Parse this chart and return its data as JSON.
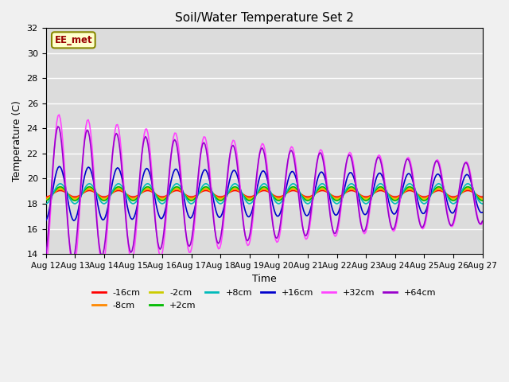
{
  "title": "Soil/Water Temperature Set 2",
  "xlabel": "Time",
  "ylabel": "Temperature (C)",
  "ylim": [
    14,
    32
  ],
  "annotation_text": "EE_met",
  "plot_bg_color": "#dcdcdc",
  "fig_bg_color": "#f0f0f0",
  "series": [
    {
      "label": "-16cm",
      "color": "#ff0000"
    },
    {
      "label": "-8cm",
      "color": "#ff8800"
    },
    {
      "label": "-2cm",
      "color": "#cccc00"
    },
    {
      "label": "+2cm",
      "color": "#00bb00"
    },
    {
      "label": "+8cm",
      "color": "#00bbbb"
    },
    {
      "label": "+16cm",
      "color": "#0000cc"
    },
    {
      "label": "+32cm",
      "color": "#ff44ff"
    },
    {
      "label": "+64cm",
      "color": "#9900cc"
    }
  ],
  "n_days": 15,
  "points_per_day": 24,
  "base_temp": 18.8,
  "xtick_labels": [
    "Aug 12",
    "Aug 13",
    "Aug 14",
    "Aug 15",
    "Aug 16",
    "Aug 17",
    "Aug 18",
    "Aug 19",
    "Aug 20",
    "Aug 21",
    "Aug 22",
    "Aug 23",
    "Aug 24",
    "Aug 25",
    "Aug 26",
    "Aug 27"
  ],
  "series_params": [
    {
      "amp": 0.25,
      "phase": 0.25,
      "decay": 0.0
    },
    {
      "amp": 0.35,
      "phase": 0.25,
      "decay": 0.0
    },
    {
      "amp": 0.45,
      "phase": 0.25,
      "decay": 0.0
    },
    {
      "amp": 0.55,
      "phase": 0.25,
      "decay": 0.0
    },
    {
      "amp": 0.8,
      "phase": 0.25,
      "decay": 0.0
    },
    {
      "amp": 2.2,
      "phase": 0.22,
      "decay": 0.025
    },
    {
      "amp": 6.5,
      "phase": 0.2,
      "decay": 0.065
    },
    {
      "amp": 5.5,
      "phase": 0.18,
      "decay": 0.055
    }
  ]
}
